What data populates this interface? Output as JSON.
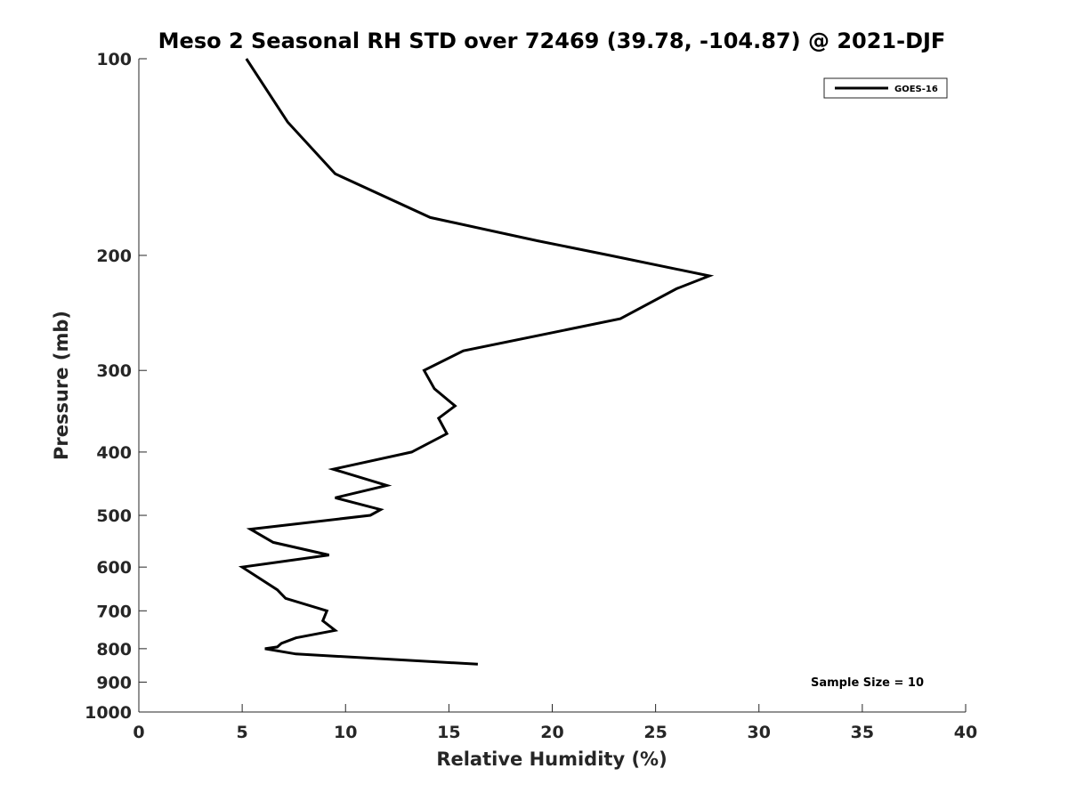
{
  "chart_data": {
    "type": "line",
    "title": "Meso 2 Seasonal RH STD over 72469 (39.78, -104.87) @ 2021-DJF",
    "xlabel": "Relative Humidity (%)",
    "ylabel": "Pressure (mb)",
    "xlim": [
      0,
      40
    ],
    "ylim": [
      100,
      1000
    ],
    "yscale": "log",
    "y_reversed": true,
    "grid": false,
    "x_ticks": [
      0,
      5,
      10,
      15,
      20,
      25,
      30,
      35,
      40
    ],
    "y_ticks": [
      100,
      200,
      300,
      400,
      500,
      600,
      700,
      800,
      900,
      1000
    ],
    "legend": {
      "location": "top-right",
      "entries": [
        "GOES-16"
      ]
    },
    "annotations": [
      {
        "text": "Sample Size = 10",
        "location": "bottom-right"
      }
    ],
    "series": [
      {
        "name": "GOES-16",
        "color": "#000000",
        "x": [
          5.2,
          7.2,
          9.5,
          14.1,
          19.3,
          22.8,
          27.6,
          26.0,
          23.3,
          15.7,
          13.8,
          14.3,
          15.3,
          14.5,
          14.9,
          13.2,
          9.4,
          12.0,
          9.5,
          11.7,
          11.2,
          5.4,
          6.5,
          9.2,
          5.0,
          6.7,
          7.1,
          9.1,
          8.9,
          9.5,
          7.6,
          6.9,
          6.7,
          6.1,
          7.6,
          16.4
        ],
        "y": [
          100,
          125,
          150,
          175,
          190,
          200,
          215,
          225,
          250,
          280,
          300,
          320,
          340,
          355,
          375,
          400,
          425,
          450,
          470,
          490,
          500,
          525,
          550,
          575,
          600,
          650,
          670,
          700,
          725,
          750,
          770,
          785,
          795,
          800,
          815,
          845
        ]
      }
    ]
  }
}
